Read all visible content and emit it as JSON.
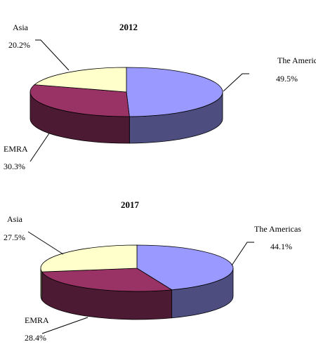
{
  "chart_data": [
    {
      "type": "pie",
      "title": "2012",
      "categories": [
        "The Americas",
        "EMRA",
        "Asia"
      ],
      "values": [
        49.5,
        30.3,
        20.2
      ],
      "value_labels": [
        "49.5%",
        "30.3%",
        "20.2%"
      ],
      "colors": [
        "#9999ff",
        "#993366",
        "#ffffcc"
      ]
    },
    {
      "type": "pie",
      "title": "2017",
      "categories": [
        "The Americas",
        "EMRA",
        "Asia"
      ],
      "values": [
        44.1,
        28.4,
        27.5
      ],
      "value_labels": [
        "44.1%",
        "28.4%",
        "27.5%"
      ],
      "colors": [
        "#9999ff",
        "#993366",
        "#ffffcc"
      ]
    }
  ]
}
